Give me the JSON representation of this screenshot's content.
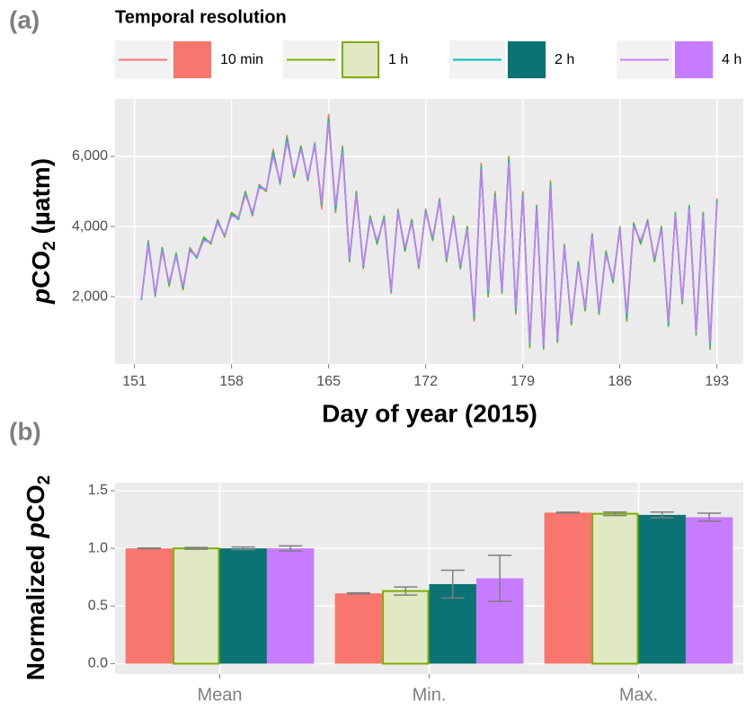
{
  "panel_labels": [
    "(a)",
    "(b)"
  ],
  "legend": {
    "title": "Temporal resolution"
  },
  "chart_data": [
    {
      "type": "line",
      "xlabel": "Day of year (2015)",
      "ylabel": [
        "p",
        "CO",
        "2",
        " (µatm)"
      ],
      "xlim": [
        149.6,
        194.9
      ],
      "ylim": [
        80,
        7640
      ],
      "xticks": [
        151,
        158,
        165,
        172,
        179,
        186,
        193
      ],
      "yticks": [
        {
          "value": 2000,
          "label": "2,000"
        },
        {
          "value": 4000,
          "label": "4,000"
        },
        {
          "value": 6000,
          "label": "6,000"
        }
      ],
      "grid": true,
      "x": [
        151.5,
        152,
        152.5,
        153,
        153.5,
        154,
        154.5,
        155,
        155.5,
        156,
        156.5,
        157,
        157.5,
        158,
        158.5,
        159,
        159.5,
        160,
        160.5,
        161,
        161.5,
        162,
        162.5,
        163,
        163.5,
        164,
        164.5,
        165,
        165.5,
        166,
        166.5,
        167,
        167.5,
        168,
        168.5,
        169,
        169.5,
        170,
        170.5,
        171,
        171.5,
        172,
        172.5,
        173,
        173.5,
        174,
        174.5,
        175,
        175.5,
        176,
        176.5,
        177,
        177.5,
        178,
        178.5,
        179,
        179.5,
        180,
        180.5,
        181,
        181.5,
        182,
        182.5,
        183,
        183.5,
        184,
        184.5,
        185,
        185.5,
        186,
        186.5,
        187,
        187.5,
        188,
        188.5,
        189,
        189.5,
        190,
        190.5,
        191,
        191.5,
        192,
        192.5,
        193
      ],
      "series": [
        {
          "name": "10 min",
          "color": "#f8766d",
          "values": [
            1900,
            3600,
            2000,
            3400,
            2300,
            3200,
            2200,
            3400,
            3100,
            3700,
            3500,
            4200,
            3700,
            4400,
            4200,
            5000,
            4300,
            5200,
            5000,
            6200,
            5200,
            6600,
            5400,
            6300,
            5300,
            6400,
            4500,
            7200,
            4400,
            6300,
            3000,
            5000,
            2800,
            4300,
            3500,
            4300,
            2100,
            4500,
            3300,
            4200,
            2800,
            4500,
            3600,
            4800,
            3000,
            4300,
            2800,
            4000,
            1300,
            5800,
            2000,
            5000,
            2100,
            6000,
            1500,
            5000,
            600,
            4600,
            600,
            5300,
            700,
            3500,
            1200,
            3000,
            1600,
            3800,
            1500,
            3300,
            2400,
            4000,
            1400,
            4100,
            3500,
            4200,
            3000,
            4000,
            1200,
            4400,
            1800,
            4600,
            1000,
            4400,
            600,
            4800
          ]
        },
        {
          "name": "1 h",
          "color": "#7cae00",
          "values": [
            1950,
            3500,
            2050,
            3400,
            2300,
            3250,
            2200,
            3350,
            3150,
            3700,
            3500,
            4150,
            3700,
            4400,
            4250,
            5000,
            4350,
            5150,
            5000,
            6150,
            5250,
            6550,
            5400,
            6300,
            5350,
            6350,
            4600,
            7100,
            4450,
            6250,
            3000,
            5000,
            2850,
            4300,
            3500,
            4300,
            2150,
            4450,
            3300,
            4200,
            2850,
            4450,
            3600,
            4750,
            3000,
            4300,
            2800,
            4000,
            1350,
            5750,
            2000,
            4950,
            2100,
            5950,
            1550,
            4950,
            550,
            4600,
            500,
            5250,
            700,
            3450,
            1200,
            3000,
            1600,
            3750,
            1500,
            3300,
            2400,
            3950,
            1300,
            4100,
            3500,
            4150,
            3000,
            4000,
            1150,
            4400,
            1800,
            4600,
            900,
            4400,
            500,
            4750
          ]
        },
        {
          "name": "2 h",
          "color": "#00bfc4",
          "values": [
            1900,
            3550,
            2050,
            3350,
            2350,
            3200,
            2250,
            3350,
            3100,
            3650,
            3550,
            4150,
            3750,
            4350,
            4200,
            4950,
            4350,
            5150,
            5050,
            6100,
            5250,
            6500,
            5450,
            6250,
            5350,
            6350,
            4650,
            7050,
            4500,
            6200,
            3050,
            4950,
            2850,
            4250,
            3550,
            4250,
            2150,
            4450,
            3350,
            4150,
            2850,
            4450,
            3650,
            4750,
            3050,
            4250,
            2850,
            3950,
            1400,
            5700,
            2100,
            4900,
            2150,
            5900,
            1600,
            4900,
            650,
            4550,
            550,
            5200,
            750,
            3450,
            1250,
            2950,
            1650,
            3750,
            1550,
            3250,
            2450,
            3950,
            1400,
            4050,
            3550,
            4150,
            3050,
            3950,
            1200,
            4350,
            1850,
            4550,
            950,
            4350,
            600,
            4700
          ]
        },
        {
          "name": "4 h",
          "color": "#c77cff",
          "values": [
            1950,
            3450,
            2100,
            3300,
            2400,
            3150,
            2300,
            3300,
            3150,
            3600,
            3550,
            4100,
            3750,
            4300,
            4250,
            4900,
            4400,
            5100,
            5050,
            6000,
            5300,
            6400,
            5500,
            6200,
            5400,
            6300,
            4700,
            6950,
            4600,
            6100,
            3100,
            4900,
            2900,
            4200,
            3600,
            4200,
            2200,
            4400,
            3400,
            4100,
            2900,
            4400,
            3700,
            4700,
            3100,
            4200,
            2900,
            3900,
            1500,
            5600,
            2200,
            4850,
            2200,
            5800,
            1700,
            4850,
            700,
            4500,
            600,
            5100,
            800,
            3400,
            1300,
            2900,
            1700,
            3700,
            1600,
            3200,
            2500,
            3900,
            1500,
            4000,
            3600,
            4100,
            3100,
            3900,
            1300,
            4300,
            1900,
            4500,
            1000,
            4300,
            700,
            4650
          ]
        }
      ]
    },
    {
      "type": "bar",
      "ylabel": [
        "Normalized ",
        "p",
        "CO",
        "2"
      ],
      "categories": [
        "Mean",
        "Min.",
        "Max."
      ],
      "ylim": [
        -0.09,
        1.57
      ],
      "yticks": [
        {
          "value": 0,
          "label": "0.0"
        },
        0.5,
        {
          "value": 1,
          "label": "1.0"
        },
        1.5
      ],
      "grid": true,
      "series": [
        {
          "color": "#f8766d",
          "values": [
            1.0,
            0.61,
            1.31
          ],
          "errors": [
            0.003,
            0.004,
            0.004
          ]
        },
        {
          "color": "#e0e8c4",
          "stroke": "#7cae00",
          "values": [
            1.0,
            0.63,
            1.3
          ],
          "errors": [
            0.008,
            0.035,
            0.015
          ]
        },
        {
          "color": "#0b7373",
          "values": [
            1.0,
            0.69,
            1.29
          ],
          "errors": [
            0.012,
            0.12,
            0.025
          ]
        },
        {
          "color": "#c77cff",
          "values": [
            1.0,
            0.74,
            1.27
          ],
          "errors": [
            0.022,
            0.2,
            0.035
          ]
        }
      ]
    }
  ]
}
